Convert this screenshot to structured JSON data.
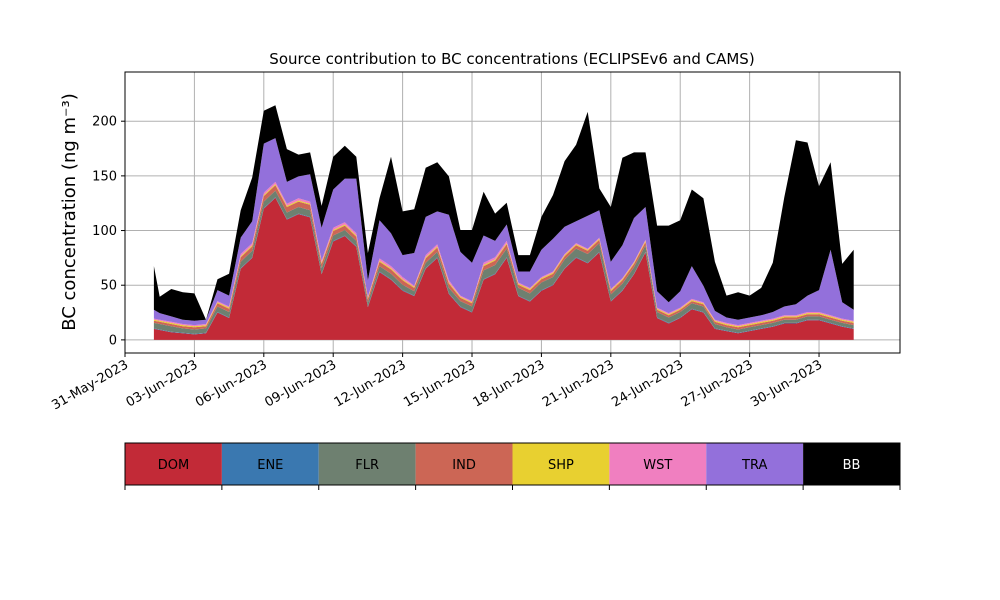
{
  "chart_data": {
    "type": "area",
    "stacked": true,
    "title": "Source contribution to BC concentrations (ECLIPSEv6 and CAMS)",
    "ylabel": "BC concentration (ng m⁻³)",
    "xlabel": "",
    "ylim": [
      -12,
      245
    ],
    "xlim": [
      "2023-05-31T00:00",
      "2023-07-03T12:00"
    ],
    "y_ticks": [
      0,
      50,
      100,
      150,
      200
    ],
    "x_ticks": [
      "31-May-2023",
      "03-Jun-2023",
      "06-Jun-2023",
      "09-Jun-2023",
      "12-Jun-2023",
      "15-Jun-2023",
      "18-Jun-2023",
      "21-Jun-2023",
      "24-Jun-2023",
      "27-Jun-2023",
      "30-Jun-2023"
    ],
    "grid": true,
    "legend_placement": "bottom colorbar",
    "x": [
      "2023-06-01T06:00",
      "2023-06-01T12:00",
      "2023-06-02T00:00",
      "2023-06-02T12:00",
      "2023-06-03T00:00",
      "2023-06-03T12:00",
      "2023-06-04T00:00",
      "2023-06-04T12:00",
      "2023-06-05T00:00",
      "2023-06-05T12:00",
      "2023-06-06T00:00",
      "2023-06-06T12:00",
      "2023-06-07T00:00",
      "2023-06-07T12:00",
      "2023-06-08T00:00",
      "2023-06-08T12:00",
      "2023-06-09T00:00",
      "2023-06-09T12:00",
      "2023-06-10T00:00",
      "2023-06-10T12:00",
      "2023-06-11T00:00",
      "2023-06-11T12:00",
      "2023-06-12T00:00",
      "2023-06-12T12:00",
      "2023-06-13T00:00",
      "2023-06-13T12:00",
      "2023-06-14T00:00",
      "2023-06-14T12:00",
      "2023-06-15T00:00",
      "2023-06-15T12:00",
      "2023-06-16T00:00",
      "2023-06-16T12:00",
      "2023-06-17T00:00",
      "2023-06-17T12:00",
      "2023-06-18T00:00",
      "2023-06-18T12:00",
      "2023-06-19T00:00",
      "2023-06-19T12:00",
      "2023-06-20T00:00",
      "2023-06-20T12:00",
      "2023-06-21T00:00",
      "2023-06-21T12:00",
      "2023-06-22T00:00",
      "2023-06-22T12:00",
      "2023-06-23T00:00",
      "2023-06-23T12:00",
      "2023-06-24T00:00",
      "2023-06-24T12:00",
      "2023-06-25T00:00",
      "2023-06-25T12:00",
      "2023-06-26T00:00",
      "2023-06-26T12:00",
      "2023-06-27T00:00",
      "2023-06-27T12:00",
      "2023-06-28T00:00",
      "2023-06-28T12:00",
      "2023-06-29T00:00",
      "2023-06-29T12:00",
      "2023-06-30T00:00",
      "2023-06-30T12:00",
      "2023-07-01T00:00",
      "2023-07-01T12:00"
    ],
    "series": [
      {
        "name": "DOM",
        "color": "#c22a37",
        "values": [
          10,
          9,
          7,
          6,
          5,
          6,
          25,
          20,
          65,
          75,
          120,
          130,
          110,
          115,
          112,
          60,
          90,
          95,
          85,
          30,
          62,
          55,
          45,
          40,
          65,
          75,
          42,
          30,
          25,
          55,
          60,
          75,
          40,
          35,
          45,
          50,
          65,
          75,
          70,
          80,
          35,
          45,
          60,
          80,
          20,
          15,
          20,
          28,
          25,
          10,
          8,
          6,
          8,
          10,
          12,
          15,
          15,
          18,
          18,
          15,
          12,
          10
        ]
      },
      {
        "name": "ENE",
        "color": "#3a78b0",
        "values": [
          0.5,
          0.5,
          0.5,
          0.5,
          0.5,
          0.5,
          0.5,
          0.5,
          0.5,
          0.5,
          0.5,
          0.5,
          0.5,
          0.5,
          0.5,
          0.5,
          0.5,
          0.5,
          0.5,
          0.5,
          0.5,
          0.5,
          0.5,
          0.5,
          0.5,
          0.5,
          0.5,
          0.5,
          0.5,
          0.5,
          0.5,
          0.5,
          0.5,
          0.5,
          0.5,
          0.5,
          0.5,
          0.5,
          0.5,
          0.5,
          0.5,
          0.5,
          0.5,
          0.5,
          0.5,
          0.5,
          0.5,
          0.5,
          0.5,
          0.5,
          0.5,
          0.5,
          0.5,
          0.5,
          0.5,
          0.5,
          0.5,
          0.5,
          0.5,
          0.5,
          0.5,
          0.5
        ]
      },
      {
        "name": "FLR",
        "color": "#6e8070",
        "values": [
          5,
          5,
          5,
          4,
          4,
          4,
          5,
          5,
          6,
          6,
          6,
          6,
          6,
          6,
          6,
          5,
          5,
          5,
          5,
          4,
          5,
          5,
          5,
          4,
          5,
          5,
          5,
          5,
          5,
          8,
          8,
          8,
          7,
          7,
          7,
          7,
          8,
          8,
          8,
          8,
          6,
          6,
          6,
          6,
          5,
          5,
          5,
          5,
          5,
          4,
          3,
          3,
          3,
          3,
          3,
          3,
          3,
          3,
          3,
          3,
          3,
          3
        ]
      },
      {
        "name": "IND",
        "color": "#cc6655",
        "values": [
          2,
          2,
          2,
          2,
          2,
          2,
          3,
          3,
          4,
          4,
          5,
          5,
          5,
          5,
          5,
          4,
          4,
          4,
          4,
          3,
          4,
          4,
          4,
          3,
          4,
          4,
          4,
          3,
          3,
          4,
          4,
          4,
          3,
          3,
          3,
          3,
          3,
          3,
          3,
          3,
          3,
          3,
          3,
          3,
          2,
          2,
          2,
          2,
          2,
          2,
          2,
          2,
          2,
          2,
          2,
          2,
          2,
          2,
          2,
          2,
          2,
          2
        ]
      },
      {
        "name": "SHP",
        "color": "#e8d030",
        "values": [
          1,
          1,
          1,
          1,
          1,
          1,
          1,
          1,
          1,
          1,
          1,
          1,
          1,
          1,
          1,
          1,
          1,
          1,
          1,
          1,
          1,
          1,
          1,
          1,
          1,
          1,
          1,
          1,
          1,
          1,
          1,
          1,
          1,
          1,
          1,
          1,
          1,
          1,
          1,
          1,
          1,
          1,
          1,
          1,
          1,
          1,
          1,
          1,
          1,
          1,
          1,
          1,
          1,
          1,
          1,
          1,
          1,
          1,
          1,
          1,
          1,
          1
        ]
      },
      {
        "name": "WST",
        "color": "#f07fc0",
        "values": [
          1,
          1,
          1,
          1,
          1,
          1,
          1,
          1,
          2,
          2,
          2,
          2,
          2,
          2,
          2,
          2,
          2,
          2,
          2,
          1,
          2,
          2,
          2,
          1,
          2,
          2,
          2,
          1,
          1,
          2,
          2,
          2,
          1,
          1,
          1,
          1,
          1,
          1,
          1,
          1,
          1,
          1,
          1,
          1,
          1,
          1,
          1,
          1,
          1,
          1,
          1,
          1,
          1,
          1,
          1,
          1,
          1,
          1,
          1,
          1,
          1,
          1
        ]
      },
      {
        "name": "TRA",
        "color": "#9370db",
        "values": [
          8,
          6,
          5,
          4,
          4,
          4,
          10,
          10,
          15,
          20,
          45,
          40,
          20,
          20,
          25,
          30,
          35,
          40,
          50,
          15,
          35,
          30,
          20,
          30,
          35,
          30,
          60,
          40,
          35,
          25,
          15,
          15,
          10,
          15,
          25,
          30,
          25,
          20,
          30,
          25,
          25,
          30,
          40,
          30,
          15,
          10,
          15,
          30,
          15,
          8,
          5,
          5,
          5,
          5,
          6,
          8,
          10,
          15,
          20,
          60,
          15,
          10
        ]
      },
      {
        "name": "BB",
        "color": "#000000",
        "values": [
          40,
          15,
          25,
          25,
          25,
          0,
          10,
          20,
          25,
          40,
          30,
          30,
          30,
          20,
          20,
          20,
          30,
          30,
          20,
          25,
          20,
          70,
          40,
          40,
          45,
          45,
          35,
          20,
          30,
          40,
          25,
          20,
          15,
          15,
          30,
          40,
          60,
          70,
          95,
          20,
          50,
          80,
          60,
          50,
          60,
          70,
          65,
          70,
          80,
          45,
          20,
          25,
          20,
          25,
          45,
          100,
          150,
          140,
          95,
          80,
          35,
          55
        ]
      }
    ],
    "legend": {
      "labels": [
        "DOM",
        "ENE",
        "FLR",
        "IND",
        "SHP",
        "WST",
        "TRA",
        "BB"
      ],
      "colors": [
        "#c22a37",
        "#3a78b0",
        "#6e8070",
        "#cc6655",
        "#e8d030",
        "#f07fc0",
        "#9370db",
        "#000000"
      ],
      "text_colors": [
        "#000000",
        "#000000",
        "#000000",
        "#000000",
        "#000000",
        "#000000",
        "#000000",
        "#ffffff"
      ]
    }
  }
}
